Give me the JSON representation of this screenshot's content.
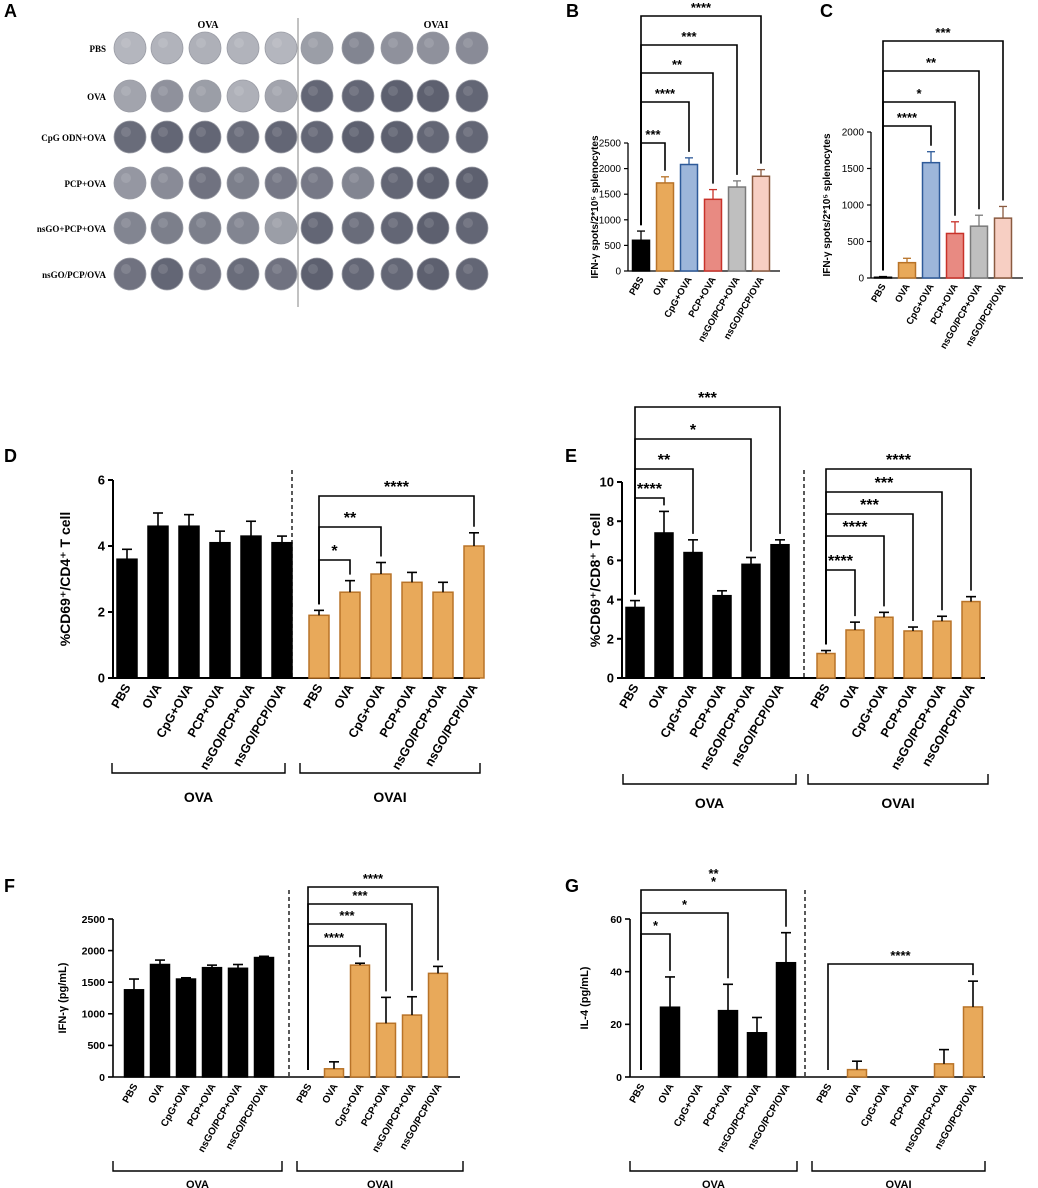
{
  "colors": {
    "black": "#000000",
    "orange": "#E8A95A",
    "orange_border": "#B87328",
    "plate_light": "#C7C9CF",
    "plate_dark": "#4A4D5E",
    "b_colors": [
      "#000000",
      "#E8A95A",
      "#9DB6DA",
      "#E88A82",
      "#BFBFBF",
      "#F7CFC3"
    ],
    "b_edges": [
      "#000000",
      "#B87328",
      "#2E5A99",
      "#C8322A",
      "#7A7A7A",
      "#8A5A40"
    ]
  },
  "panel_a": {
    "label": "A",
    "header_left": "OVA",
    "header_right": "OVAI",
    "rows": [
      "PBS",
      "OVA",
      "CpG ODN+OVA",
      "PCP+OVA",
      "nsGO+PCP+OVA",
      "nsGO/PCP/OVA"
    ],
    "well_darkness": [
      [
        0.15,
        0.18,
        0.2,
        0.18,
        0.15,
        0.35,
        0.55,
        0.45,
        0.45,
        0.5
      ],
      [
        0.3,
        0.45,
        0.35,
        0.2,
        0.3,
        0.8,
        0.8,
        0.85,
        0.85,
        0.8
      ],
      [
        0.75,
        0.8,
        0.8,
        0.75,
        0.8,
        0.8,
        0.85,
        0.85,
        0.8,
        0.8
      ],
      [
        0.4,
        0.5,
        0.7,
        0.6,
        0.65,
        0.65,
        0.55,
        0.8,
        0.85,
        0.85
      ],
      [
        0.55,
        0.6,
        0.6,
        0.55,
        0.35,
        0.8,
        0.75,
        0.8,
        0.85,
        0.8
      ],
      [
        0.7,
        0.8,
        0.7,
        0.75,
        0.7,
        0.85,
        0.8,
        0.8,
        0.85,
        0.8
      ]
    ]
  },
  "chart_data": [
    {
      "id": "B",
      "label": "B",
      "type": "bar",
      "ylabel": "IFN-γ spots/2*10⁵ splenocytes",
      "categories": [
        "PBS",
        "OVA",
        "CpG+OVA",
        "PCP+OVA",
        "nsGO/PCP+OVA",
        "nsGO/PCP/OVA"
      ],
      "values": [
        600,
        1720,
        2080,
        1400,
        1640,
        1850
      ],
      "errors": [
        180,
        120,
        130,
        190,
        120,
        130
      ],
      "ylim": [
        0,
        2500
      ],
      "yticks": [
        "0",
        "500",
        "1000",
        "1500",
        "2000",
        "2500"
      ],
      "significance": [
        "***",
        "****",
        "**",
        "***",
        "****"
      ]
    },
    {
      "id": "C",
      "label": "C",
      "type": "bar",
      "ylabel": "IFN-γ spots/2*10⁵ splenocytes",
      "categories": [
        "PBS",
        "OVA",
        "CpG+OVA",
        "PCP+OVA",
        "nsGO/PCP+OVA",
        "nsGO/PCP/OVA"
      ],
      "values": [
        10,
        210,
        1580,
        610,
        710,
        820
      ],
      "errors": [
        10,
        60,
        150,
        160,
        150,
        160
      ],
      "ylim": [
        0,
        2000
      ],
      "yticks": [
        "0",
        "500",
        "1000",
        "1500",
        "2000"
      ],
      "significance": [
        "****",
        "*",
        "**",
        "***"
      ]
    },
    {
      "id": "D",
      "label": "D",
      "type": "bar",
      "ylabel": "%CD69⁺/CD4⁺ T cell",
      "categories": [
        "PBS",
        "OVA",
        "CpG+OVA",
        "PCP+OVA",
        "nsGO/PCP+OVA",
        "nsGO/PCP/OVA"
      ],
      "groups": [
        "OVA",
        "OVAI"
      ],
      "series": [
        {
          "name": "OVA",
          "values": [
            3.6,
            4.6,
            4.6,
            4.1,
            4.3,
            4.1
          ],
          "errors": [
            0.3,
            0.4,
            0.35,
            0.35,
            0.45,
            0.2
          ]
        },
        {
          "name": "OVAI",
          "values": [
            1.9,
            2.6,
            3.15,
            2.9,
            2.6,
            4.0
          ],
          "errors": [
            0.15,
            0.35,
            0.35,
            0.3,
            0.3,
            0.4
          ]
        }
      ],
      "ylim": [
        0,
        6
      ],
      "yticks": [
        "0",
        "2",
        "4",
        "6"
      ],
      "significance": [
        "*",
        "**",
        "****"
      ]
    },
    {
      "id": "E",
      "label": "E",
      "type": "bar",
      "ylabel": "%CD69⁺/CD8⁺ T cell",
      "categories": [
        "PBS",
        "OVA",
        "CpG+OVA",
        "PCP+OVA",
        "nsGO/PCP+OVA",
        "nsGO/PCP/OVA"
      ],
      "groups": [
        "OVA",
        "OVAI"
      ],
      "series": [
        {
          "name": "OVA",
          "values": [
            3.6,
            7.4,
            6.4,
            4.2,
            5.8,
            6.8
          ],
          "errors": [
            0.35,
            1.1,
            0.65,
            0.25,
            0.35,
            0.25
          ]
        },
        {
          "name": "OVAI",
          "values": [
            1.25,
            2.45,
            3.1,
            2.4,
            2.9,
            3.9
          ],
          "errors": [
            0.15,
            0.4,
            0.25,
            0.2,
            0.25,
            0.25
          ]
        }
      ],
      "ylim": [
        0,
        10
      ],
      "yticks": [
        "0",
        "2",
        "4",
        "6",
        "8",
        "10"
      ],
      "significance_left": [
        "****",
        "**",
        "*",
        "***"
      ],
      "significance_right": [
        "****",
        "****",
        "***",
        "***",
        "****"
      ]
    },
    {
      "id": "F",
      "label": "F",
      "type": "bar",
      "ylabel": "IFN-γ (pg/mL)",
      "categories": [
        "PBS",
        "OVA",
        "CpG+OVA",
        "PCP+OVA",
        "nsGO/PCP+OVA",
        "nsGO/PCP/OVA"
      ],
      "groups": [
        "OVA",
        "OVAI"
      ],
      "series": [
        {
          "name": "OVA",
          "values": [
            1380,
            1780,
            1550,
            1730,
            1720,
            1890
          ],
          "errors": [
            170,
            70,
            20,
            40,
            60,
            20
          ]
        },
        {
          "name": "OVAI",
          "values": [
            0,
            130,
            1770,
            850,
            980,
            1640
          ],
          "errors": [
            0,
            110,
            30,
            410,
            290,
            110
          ]
        }
      ],
      "ylim": [
        0,
        2500
      ],
      "yticks": [
        "0",
        "500",
        "1000",
        "1500",
        "2000",
        "2500"
      ],
      "significance": [
        "****",
        "***",
        "***",
        "****"
      ]
    },
    {
      "id": "G",
      "label": "G",
      "type": "bar",
      "ylabel": "IL-4 (pg/mL)",
      "categories": [
        "PBS",
        "OVA",
        "CpG+OVA",
        "PCP+OVA",
        "nsGO/PCP+OVA",
        "nsGO/PCP/OVA"
      ],
      "groups": [
        "OVA",
        "OVAI"
      ],
      "series": [
        {
          "name": "OVA",
          "values": [
            0,
            26.5,
            0,
            25.2,
            16.8,
            43.4
          ],
          "errors": [
            0,
            11.5,
            0,
            10,
            5.8,
            11.4
          ]
        },
        {
          "name": "OVAI",
          "values": [
            0,
            2.8,
            0,
            0,
            5,
            26.6
          ],
          "errors": [
            0,
            3.2,
            0,
            0,
            5.4,
            9.8
          ]
        }
      ],
      "ylim": [
        0,
        60
      ],
      "yticks": [
        "0",
        "20",
        "40",
        "60"
      ],
      "significance_left": [
        "*",
        "*",
        "**",
        "*"
      ],
      "significance_right": [
        "****"
      ]
    }
  ]
}
